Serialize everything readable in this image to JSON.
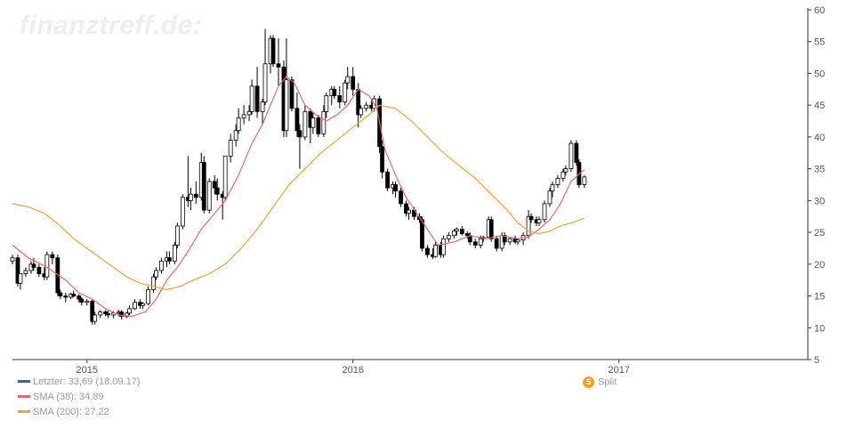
{
  "brand": {
    "watermark": "finanztreff.de:"
  },
  "legend": [
    {
      "label": "Letzter: 33,69 (18.09.17)",
      "color": "#2a6ab0"
    },
    {
      "label": "SMA (38): 34,89",
      "color": "#e8696b"
    },
    {
      "label": "SMA (200): 27,22",
      "color": "#f0a235"
    }
  ],
  "split": {
    "icon": "S",
    "label": "Split",
    "color": "#f5a21a"
  },
  "chart_data": {
    "type": "candlestick",
    "ylim": [
      5,
      60
    ],
    "yticks": [
      5,
      10,
      15,
      20,
      25,
      30,
      35,
      40,
      45,
      50,
      55,
      60
    ],
    "xticks": [
      {
        "label": "2015",
        "x": 2015.0
      },
      {
        "label": "2016",
        "x": 2016.0
      },
      {
        "label": "2017",
        "x": 2017.0
      }
    ],
    "xlim": [
      2014.72,
      2017.71
    ],
    "grid": false,
    "candles": [
      [
        2014.72,
        20.5,
        21.5,
        20.0,
        21.0
      ],
      [
        2014.74,
        21.0,
        21.5,
        16.5,
        17.0
      ],
      [
        2014.75,
        17.0,
        18.5,
        16.0,
        18.5
      ],
      [
        2014.77,
        18.5,
        19.5,
        18.0,
        19.0
      ],
      [
        2014.79,
        19.0,
        20.5,
        18.5,
        20.0
      ],
      [
        2014.8,
        20.0,
        21.0,
        19.0,
        19.5
      ],
      [
        2014.82,
        19.5,
        20.0,
        18.0,
        18.5
      ],
      [
        2014.84,
        18.5,
        19.5,
        17.5,
        18.0
      ],
      [
        2014.85,
        18.0,
        22.0,
        17.5,
        21.5
      ],
      [
        2014.87,
        21.5,
        22.0,
        20.0,
        21.0
      ],
      [
        2014.89,
        21.0,
        21.5,
        15.0,
        15.5
      ],
      [
        2014.9,
        15.5,
        16.0,
        14.5,
        15.0
      ],
      [
        2014.92,
        15.0,
        15.5,
        14.0,
        14.8
      ],
      [
        2014.94,
        14.8,
        15.5,
        14.5,
        15.3
      ],
      [
        2014.95,
        15.3,
        15.8,
        14.8,
        15.0
      ],
      [
        2014.97,
        15.0,
        15.3,
        14.0,
        14.5
      ],
      [
        2014.98,
        14.5,
        14.8,
        13.5,
        14.0
      ],
      [
        2015.0,
        14.0,
        14.5,
        13.5,
        14.2
      ],
      [
        2015.02,
        14.2,
        14.5,
        10.5,
        11.0
      ],
      [
        2015.03,
        11.0,
        12.5,
        10.5,
        12.0
      ],
      [
        2015.05,
        12.0,
        12.8,
        11.5,
        12.5
      ],
      [
        2015.07,
        12.5,
        12.8,
        11.8,
        12.2
      ],
      [
        2015.08,
        12.2,
        12.7,
        11.5,
        12.0
      ],
      [
        2015.1,
        12.0,
        12.6,
        11.5,
        12.3
      ],
      [
        2015.12,
        12.3,
        12.8,
        11.8,
        12.5
      ],
      [
        2015.13,
        12.5,
        12.8,
        11.3,
        11.8
      ],
      [
        2015.15,
        11.8,
        12.5,
        11.5,
        12.3
      ],
      [
        2015.16,
        12.3,
        13.5,
        12.0,
        13.0
      ],
      [
        2015.18,
        13.0,
        14.5,
        12.8,
        14.0
      ],
      [
        2015.2,
        14.0,
        14.5,
        13.0,
        13.5
      ],
      [
        2015.21,
        13.5,
        14.0,
        13.0,
        13.8
      ],
      [
        2015.23,
        13.8,
        16.5,
        13.5,
        16.0
      ],
      [
        2015.25,
        16.0,
        18.5,
        15.5,
        18.0
      ],
      [
        2015.26,
        18.0,
        19.5,
        17.5,
        19.0
      ],
      [
        2015.28,
        19.0,
        21.0,
        18.5,
        20.5
      ],
      [
        2015.3,
        20.5,
        22.0,
        19.5,
        21.0
      ],
      [
        2015.31,
        21.0,
        22.0,
        20.0,
        20.5
      ],
      [
        2015.33,
        20.5,
        23.5,
        20.0,
        23.0
      ],
      [
        2015.34,
        23.0,
        26.5,
        22.5,
        26.0
      ],
      [
        2015.36,
        26.0,
        31.0,
        25.5,
        30.5
      ],
      [
        2015.38,
        30.5,
        37.0,
        29.0,
        30.0
      ],
      [
        2015.39,
        30.0,
        32.0,
        28.5,
        31.0
      ],
      [
        2015.41,
        31.0,
        33.0,
        29.5,
        30.5
      ],
      [
        2015.43,
        30.5,
        37.5,
        30.0,
        36.0
      ],
      [
        2015.44,
        36.0,
        37.0,
        28.0,
        28.5
      ],
      [
        2015.46,
        28.5,
        33.5,
        28.0,
        33.0
      ],
      [
        2015.48,
        33.0,
        34.0,
        31.0,
        32.0
      ],
      [
        2015.49,
        32.0,
        33.5,
        30.0,
        31.0
      ],
      [
        2015.51,
        31.0,
        31.5,
        27.0,
        30.5
      ],
      [
        2015.52,
        30.5,
        37.0,
        30.0,
        37.0
      ],
      [
        2015.54,
        37.0,
        40.5,
        36.0,
        39.5
      ],
      [
        2015.56,
        39.5,
        42.0,
        38.5,
        41.0
      ],
      [
        2015.57,
        41.0,
        44.5,
        40.5,
        43.0
      ],
      [
        2015.59,
        43.0,
        45.0,
        42.0,
        43.5
      ],
      [
        2015.61,
        43.5,
        45.0,
        42.5,
        44.0
      ],
      [
        2015.62,
        44.0,
        49.0,
        43.5,
        48.0
      ],
      [
        2015.64,
        48.0,
        51.0,
        43.0,
        44.0
      ],
      [
        2015.66,
        44.0,
        46.0,
        42.0,
        45.5
      ],
      [
        2015.67,
        45.5,
        57.0,
        45.0,
        51.5
      ],
      [
        2015.69,
        51.5,
        56.0,
        50.0,
        55.5
      ],
      [
        2015.7,
        55.5,
        56.0,
        51.0,
        51.5
      ],
      [
        2015.72,
        51.5,
        55.5,
        48.0,
        51.0
      ],
      [
        2015.74,
        51.0,
        52.0,
        40.0,
        41.0
      ],
      [
        2015.75,
        41.0,
        55.5,
        40.0,
        49.0
      ],
      [
        2015.77,
        49.0,
        49.5,
        44.0,
        44.5
      ],
      [
        2015.79,
        44.5,
        47.0,
        40.0,
        41.0
      ],
      [
        2015.8,
        41.0,
        42.0,
        35.0,
        40.0
      ],
      [
        2015.82,
        40.0,
        45.0,
        39.5,
        44.0
      ],
      [
        2015.84,
        44.0,
        44.5,
        39.0,
        41.5
      ],
      [
        2015.85,
        41.5,
        44.0,
        40.5,
        43.0
      ],
      [
        2015.87,
        43.0,
        43.5,
        40.0,
        40.5
      ],
      [
        2015.89,
        40.5,
        45.0,
        40.0,
        44.0
      ],
      [
        2015.9,
        44.0,
        47.0,
        43.0,
        46.5
      ],
      [
        2015.92,
        46.5,
        48.0,
        45.0,
        47.5
      ],
      [
        2015.93,
        47.5,
        48.0,
        46.0,
        46.5
      ],
      [
        2015.95,
        46.5,
        48.0,
        44.5,
        45.5
      ],
      [
        2015.97,
        45.5,
        49.0,
        45.0,
        48.5
      ],
      [
        2015.98,
        48.5,
        51.0,
        47.5,
        49.5
      ],
      [
        2016.0,
        49.5,
        51.0,
        46.5,
        47.5
      ],
      [
        2016.02,
        47.5,
        48.5,
        41.5,
        43.5
      ],
      [
        2016.03,
        43.5,
        45.0,
        43.0,
        44.5
      ],
      [
        2016.05,
        44.5,
        45.5,
        44.0,
        45.0
      ],
      [
        2016.07,
        45.0,
        45.8,
        44.0,
        44.5
      ],
      [
        2016.08,
        44.5,
        46.5,
        44.0,
        46.0
      ],
      [
        2016.1,
        46.0,
        46.5,
        37.5,
        38.5
      ],
      [
        2016.11,
        38.5,
        39.5,
        33.5,
        34.5
      ],
      [
        2016.13,
        34.5,
        35.0,
        31.5,
        32.0
      ],
      [
        2016.15,
        32.0,
        33.0,
        31.0,
        32.5
      ],
      [
        2016.16,
        32.5,
        33.0,
        30.5,
        31.5
      ],
      [
        2016.18,
        31.5,
        32.0,
        29.0,
        29.5
      ],
      [
        2016.2,
        29.5,
        30.0,
        27.5,
        28.0
      ],
      [
        2016.21,
        28.0,
        29.0,
        27.0,
        28.5
      ],
      [
        2016.23,
        28.5,
        29.0,
        27.0,
        27.5
      ],
      [
        2016.25,
        27.5,
        28.0,
        26.5,
        27.0
      ],
      [
        2016.26,
        27.0,
        27.5,
        22.0,
        22.5
      ],
      [
        2016.28,
        22.5,
        23.0,
        21.0,
        21.5
      ],
      [
        2016.3,
        21.5,
        22.5,
        20.8,
        21.2
      ],
      [
        2016.31,
        21.2,
        23.5,
        21.0,
        23.0
      ],
      [
        2016.33,
        23.0,
        23.5,
        21.0,
        21.5
      ],
      [
        2016.34,
        21.5,
        24.5,
        21.0,
        24.0
      ],
      [
        2016.36,
        24.0,
        25.0,
        23.5,
        24.5
      ],
      [
        2016.38,
        24.5,
        25.5,
        24.0,
        25.2
      ],
      [
        2016.39,
        25.2,
        25.8,
        24.5,
        25.5
      ],
      [
        2016.41,
        25.5,
        26.0,
        24.5,
        24.8
      ],
      [
        2016.43,
        24.8,
        25.2,
        24.0,
        24.5
      ],
      [
        2016.44,
        24.5,
        25.0,
        23.0,
        23.5
      ],
      [
        2016.46,
        23.5,
        24.0,
        22.5,
        23.0
      ],
      [
        2016.48,
        23.0,
        24.5,
        22.5,
        24.0
      ],
      [
        2016.49,
        24.0,
        24.5,
        23.5,
        24.2
      ],
      [
        2016.51,
        24.2,
        27.5,
        24.0,
        27.0
      ],
      [
        2016.52,
        27.0,
        27.5,
        23.5,
        24.0
      ],
      [
        2016.54,
        24.0,
        24.5,
        22.0,
        22.5
      ],
      [
        2016.56,
        22.5,
        25.0,
        22.0,
        24.5
      ],
      [
        2016.57,
        24.5,
        25.0,
        23.0,
        23.5
      ],
      [
        2016.59,
        23.5,
        24.2,
        23.0,
        24.0
      ],
      [
        2016.61,
        24.0,
        24.5,
        23.2,
        23.5
      ],
      [
        2016.62,
        23.5,
        24.0,
        23.0,
        23.8
      ],
      [
        2016.64,
        23.8,
        25.0,
        23.0,
        24.5
      ],
      [
        2016.66,
        24.5,
        28.5,
        24.0,
        27.5
      ],
      [
        2016.67,
        27.5,
        28.0,
        26.5,
        27.0
      ],
      [
        2016.69,
        27.0,
        27.5,
        26.0,
        26.5
      ],
      [
        2016.7,
        26.5,
        27.5,
        26.0,
        27.0
      ],
      [
        2016.72,
        27.0,
        30.0,
        26.5,
        29.5
      ],
      [
        2016.74,
        29.5,
        32.0,
        29.0,
        31.5
      ],
      [
        2016.75,
        31.5,
        33.0,
        30.5,
        32.5
      ],
      [
        2016.77,
        32.5,
        34.0,
        32.0,
        33.5
      ],
      [
        2016.79,
        33.5,
        35.0,
        33.0,
        34.5
      ],
      [
        2016.8,
        34.5,
        35.5,
        34.0,
        35.0
      ],
      [
        2016.82,
        35.0,
        39.5,
        34.5,
        39.0
      ],
      [
        2016.84,
        39.0,
        39.5,
        35.5,
        36.0
      ],
      [
        2016.85,
        36.0,
        36.5,
        32.0,
        32.5
      ],
      [
        2016.87,
        32.5,
        34.0,
        32.0,
        33.7
      ]
    ],
    "series": [
      {
        "name": "SMA (38)",
        "color": "#e8696b",
        "points": [
          [
            2014.72,
            23.0
          ],
          [
            2014.78,
            21.0
          ],
          [
            2014.85,
            19.5
          ],
          [
            2014.92,
            17.5
          ],
          [
            2014.97,
            15.5
          ],
          [
            2015.02,
            14.5
          ],
          [
            2015.07,
            13.0
          ],
          [
            2015.12,
            12.0
          ],
          [
            2015.17,
            11.8
          ],
          [
            2015.22,
            12.5
          ],
          [
            2015.26,
            14.5
          ],
          [
            2015.3,
            17.5
          ],
          [
            2015.34,
            19.5
          ],
          [
            2015.38,
            22.0
          ],
          [
            2015.43,
            25.5
          ],
          [
            2015.48,
            28.0
          ],
          [
            2015.52,
            30.0
          ],
          [
            2015.57,
            34.0
          ],
          [
            2015.62,
            39.0
          ],
          [
            2015.66,
            42.0
          ],
          [
            2015.69,
            45.0
          ],
          [
            2015.72,
            48.0
          ],
          [
            2015.75,
            49.5
          ],
          [
            2015.78,
            48.5
          ],
          [
            2015.82,
            45.0
          ],
          [
            2015.86,
            43.5
          ],
          [
            2015.9,
            42.5
          ],
          [
            2015.94,
            43.5
          ],
          [
            2015.98,
            45.0
          ],
          [
            2016.02,
            47.5
          ],
          [
            2016.06,
            46.5
          ],
          [
            2016.09,
            44.5
          ],
          [
            2016.12,
            38.0
          ],
          [
            2016.16,
            34.0
          ],
          [
            2016.2,
            30.5
          ],
          [
            2016.24,
            28.0
          ],
          [
            2016.28,
            25.5
          ],
          [
            2016.32,
            23.0
          ],
          [
            2016.38,
            23.5
          ],
          [
            2016.44,
            24.5
          ],
          [
            2016.5,
            24.0
          ],
          [
            2016.56,
            24.5
          ],
          [
            2016.62,
            24.0
          ],
          [
            2016.66,
            24.3
          ],
          [
            2016.7,
            25.5
          ],
          [
            2016.74,
            27.0
          ],
          [
            2016.78,
            29.5
          ],
          [
            2016.82,
            33.0
          ],
          [
            2016.87,
            34.89
          ]
        ]
      },
      {
        "name": "SMA (200)",
        "color": "#f0a235",
        "points": [
          [
            2014.72,
            29.5
          ],
          [
            2014.78,
            29.0
          ],
          [
            2014.84,
            28.0
          ],
          [
            2014.9,
            26.0
          ],
          [
            2014.95,
            24.0
          ],
          [
            2015.0,
            22.5
          ],
          [
            2015.05,
            21.0
          ],
          [
            2015.1,
            19.5
          ],
          [
            2015.15,
            18.0
          ],
          [
            2015.2,
            17.0
          ],
          [
            2015.25,
            16.5
          ],
          [
            2015.3,
            16.0
          ],
          [
            2015.35,
            16.5
          ],
          [
            2015.4,
            17.5
          ],
          [
            2015.46,
            18.5
          ],
          [
            2015.52,
            20.0
          ],
          [
            2015.58,
            22.5
          ],
          [
            2015.64,
            25.5
          ],
          [
            2015.7,
            29.0
          ],
          [
            2015.76,
            32.5
          ],
          [
            2015.82,
            35.0
          ],
          [
            2015.88,
            37.5
          ],
          [
            2015.94,
            39.5
          ],
          [
            2016.0,
            41.5
          ],
          [
            2016.06,
            43.5
          ],
          [
            2016.1,
            45.0
          ],
          [
            2016.16,
            44.5
          ],
          [
            2016.22,
            42.5
          ],
          [
            2016.28,
            40.0
          ],
          [
            2016.34,
            37.5
          ],
          [
            2016.4,
            35.5
          ],
          [
            2016.46,
            33.5
          ],
          [
            2016.52,
            31.0
          ],
          [
            2016.58,
            28.5
          ],
          [
            2016.62,
            26.5
          ],
          [
            2016.66,
            25.2
          ],
          [
            2016.7,
            24.8
          ],
          [
            2016.74,
            25.2
          ],
          [
            2016.78,
            26.0
          ],
          [
            2016.82,
            26.5
          ],
          [
            2016.87,
            27.22
          ]
        ]
      }
    ]
  }
}
